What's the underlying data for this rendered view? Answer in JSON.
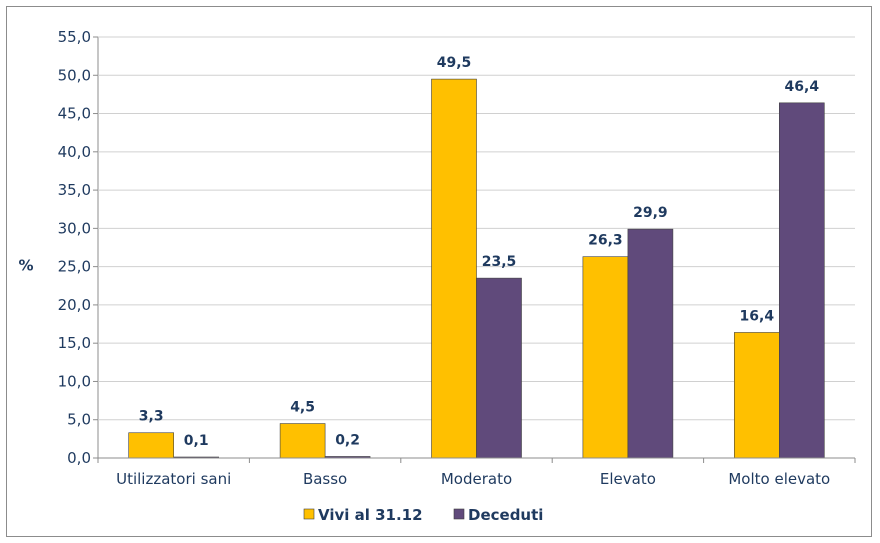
{
  "chart_data": {
    "type": "bar",
    "categories": [
      "Utilizzatori sani",
      "Basso",
      "Moderato",
      "Elevato",
      "Molto elevato"
    ],
    "series": [
      {
        "name": "Vivi al 31.12",
        "values": [
          3.3,
          4.5,
          49.5,
          26.3,
          16.4
        ],
        "value_labels": [
          "3,3",
          "4,5",
          "49,5",
          "26,3",
          "16,4"
        ],
        "color": "#FFC000"
      },
      {
        "name": "Deceduti",
        "values": [
          0.1,
          0.2,
          23.5,
          29.9,
          46.4
        ],
        "value_labels": [
          "0,1",
          "0,2",
          "23,5",
          "29,9",
          "46,4"
        ],
        "color": "#604A7B"
      }
    ],
    "ylabel": "%",
    "ylim": [
      0,
      55
    ],
    "yticks": [
      0,
      5,
      10,
      15,
      20,
      25,
      30,
      35,
      40,
      45,
      50,
      55
    ],
    "ytick_labels": [
      "0,0",
      "5,0",
      "10,0",
      "15,0",
      "20,0",
      "25,0",
      "30,0",
      "35,0",
      "40,0",
      "45,0",
      "50,0",
      "55,0"
    ],
    "grid": true,
    "legend_position": "bottom"
  }
}
